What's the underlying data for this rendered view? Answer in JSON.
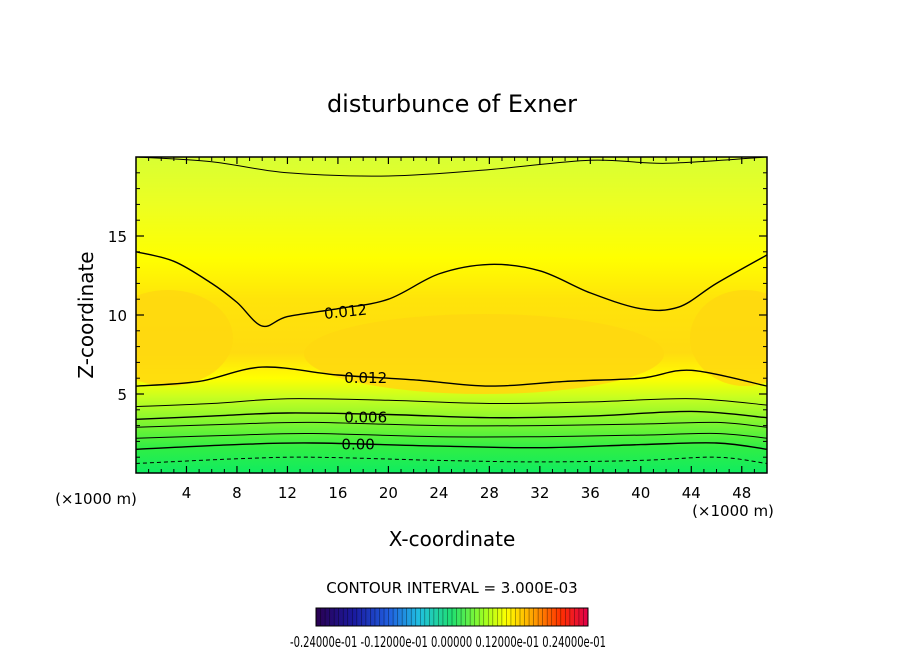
{
  "chart_data": {
    "type": "heatmap",
    "title": "disturbunce of Exner",
    "xlabel": "X-coordinate",
    "ylabel": "Z-coordinate",
    "xlim": [
      0,
      50
    ],
    "ylim": [
      0,
      20
    ],
    "x_unit_left": "(×1000 m)",
    "x_unit_right": "(×1000 m)",
    "xticks": [
      4,
      8,
      12,
      16,
      20,
      24,
      28,
      32,
      36,
      40,
      44,
      48
    ],
    "yticks": [
      5,
      10,
      15
    ],
    "contour_interval_text": "CONTOUR INTERVAL = 3.000E-03",
    "contour_labels": [
      {
        "text": "0.012",
        "x": 16.6,
        "z": 10.2
      },
      {
        "text": "0.012",
        "x": 18.2,
        "z": 6.0
      },
      {
        "text": "0.006",
        "x": 18.2,
        "z": 3.5
      },
      {
        "text": "0.00",
        "x": 17.6,
        "z": 1.8
      }
    ],
    "colorbar": {
      "min": -0.024,
      "max": 0.024,
      "labels_text": "-0.24000e-01 -0.12000e-01 0.00000 0.12000e-01 0.24000e-01",
      "colors": [
        "#2a0050",
        "#1a1aa0",
        "#2060e0",
        "#20c0e0",
        "#20e070",
        "#a0ff20",
        "#ffff00",
        "#ffa000",
        "#ff3000",
        "#e0004a"
      ]
    },
    "contours": [
      {
        "level": 0.015,
        "width": 1,
        "dash": "",
        "points": [
          [
            0,
            20
          ],
          [
            6,
            19.7
          ],
          [
            12,
            19.0
          ],
          [
            20,
            18.8
          ],
          [
            28,
            19.2
          ],
          [
            36,
            19.8
          ],
          [
            42,
            19.6
          ],
          [
            50,
            20
          ]
        ]
      },
      {
        "level": 0.012,
        "width": 1.4,
        "dash": "",
        "points": [
          [
            0,
            14
          ],
          [
            3,
            13.4
          ],
          [
            6,
            12
          ],
          [
            8,
            10.8
          ],
          [
            10,
            9.3
          ],
          [
            12,
            9.9
          ],
          [
            16,
            10.4
          ],
          [
            20,
            11.0
          ],
          [
            24,
            12.6
          ],
          [
            28,
            13.2
          ],
          [
            32,
            12.8
          ],
          [
            36,
            11.4
          ],
          [
            40,
            10.4
          ],
          [
            43,
            10.5
          ],
          [
            46,
            12.0
          ],
          [
            50,
            13.8
          ]
        ]
      },
      {
        "level": 0.012,
        "width": 1.4,
        "dash": "",
        "points": [
          [
            0,
            5.5
          ],
          [
            5,
            5.8
          ],
          [
            10,
            6.7
          ],
          [
            16,
            6.2
          ],
          [
            22,
            5.9
          ],
          [
            28,
            5.5
          ],
          [
            34,
            5.8
          ],
          [
            40,
            6.0
          ],
          [
            44,
            6.5
          ],
          [
            50,
            5.5
          ]
        ]
      },
      {
        "level": 0.009,
        "width": 1,
        "dash": "",
        "points": [
          [
            0,
            4.2
          ],
          [
            6,
            4.4
          ],
          [
            12,
            4.7
          ],
          [
            20,
            4.6
          ],
          [
            28,
            4.4
          ],
          [
            36,
            4.5
          ],
          [
            44,
            4.7
          ],
          [
            50,
            4.3
          ]
        ]
      },
      {
        "level": 0.006,
        "width": 1.4,
        "dash": "",
        "points": [
          [
            0,
            3.4
          ],
          [
            6,
            3.6
          ],
          [
            12,
            3.8
          ],
          [
            20,
            3.7
          ],
          [
            28,
            3.5
          ],
          [
            36,
            3.6
          ],
          [
            44,
            3.9
          ],
          [
            50,
            3.5
          ]
        ]
      },
      {
        "level": 0.006,
        "width": 1,
        "dash": "",
        "points": [
          [
            0,
            2.9
          ],
          [
            8,
            3.1
          ],
          [
            14,
            3.2
          ],
          [
            24,
            3.0
          ],
          [
            32,
            3.0
          ],
          [
            40,
            3.1
          ],
          [
            46,
            3.2
          ],
          [
            50,
            2.9
          ]
        ]
      },
      {
        "level": 0.003,
        "width": 1,
        "dash": "",
        "points": [
          [
            0,
            2.2
          ],
          [
            8,
            2.4
          ],
          [
            14,
            2.5
          ],
          [
            24,
            2.3
          ],
          [
            32,
            2.3
          ],
          [
            40,
            2.4
          ],
          [
            46,
            2.5
          ],
          [
            50,
            2.2
          ]
        ]
      },
      {
        "level": 0.0,
        "width": 1.4,
        "dash": "",
        "points": [
          [
            0,
            1.5
          ],
          [
            8,
            1.8
          ],
          [
            14,
            1.9
          ],
          [
            24,
            1.7
          ],
          [
            32,
            1.6
          ],
          [
            40,
            1.8
          ],
          [
            46,
            1.9
          ],
          [
            50,
            1.5
          ]
        ]
      },
      {
        "level": -0.003,
        "width": 1,
        "dash": "4 3",
        "points": [
          [
            0,
            0.6
          ],
          [
            8,
            0.9
          ],
          [
            14,
            1.0
          ],
          [
            24,
            0.8
          ],
          [
            32,
            0.7
          ],
          [
            40,
            0.8
          ],
          [
            46,
            1.0
          ],
          [
            50,
            0.6
          ]
        ]
      }
    ],
    "grid": false,
    "legend": "none"
  }
}
